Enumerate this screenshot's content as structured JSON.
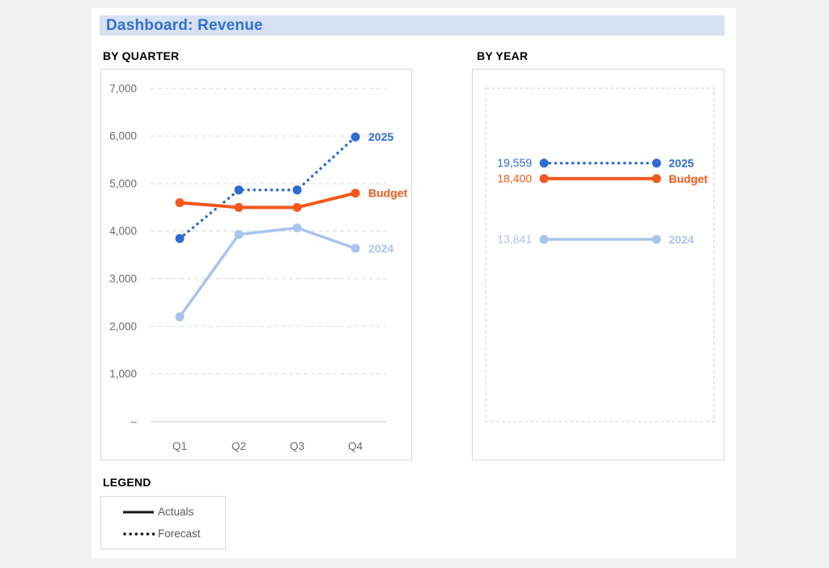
{
  "header": {
    "title": "Dashboard: Revenue"
  },
  "sections": {
    "quarter_heading": "BY QUARTER",
    "year_heading": "BY YEAR",
    "legend_heading": "LEGEND"
  },
  "legend": {
    "items": [
      {
        "label": "Actuals",
        "style": "solid"
      },
      {
        "label": "Forecast",
        "style": "dotted"
      }
    ]
  },
  "colors": {
    "accent_blue": "#2e6bd2",
    "accent_orange": "#f4581c",
    "accent_light_blue": "#a9c4ec",
    "title_bar_bg": "#d7e1f4",
    "title_text": "#3070d2",
    "axis_text": "#6b6b6b",
    "gridline": "#d9d9d9",
    "legend_line": "#1a1a1a"
  },
  "chart_data": [
    {
      "type": "line",
      "title": "BY QUARTER",
      "categories": [
        "Q1",
        "Q2",
        "Q3",
        "Q4"
      ],
      "series": [
        {
          "name": "2025",
          "values": [
            3846,
            4866,
            4866,
            5981
          ],
          "color": "#2e6bd2",
          "line_style": "dotted"
        },
        {
          "name": "Budget",
          "values": [
            4600,
            4500,
            4500,
            4800
          ],
          "color": "#f4581c",
          "line_style": "solid"
        },
        {
          "name": "2024",
          "values": [
            2200,
            3931,
            4070,
            3640
          ],
          "color": "#a9c4ec",
          "line_style": "solid"
        }
      ],
      "ylim": [
        0,
        7000
      ],
      "yticks": [
        {
          "value": 7000,
          "label": "7,000"
        },
        {
          "value": 6000,
          "label": "6,000"
        },
        {
          "value": 5000,
          "label": "5,000"
        },
        {
          "value": 4000,
          "label": "4,000"
        },
        {
          "value": 3000,
          "label": "3,000"
        },
        {
          "value": 2000,
          "label": "2,000"
        },
        {
          "value": 1000,
          "label": "1,000"
        },
        {
          "value": 0,
          "label": "–"
        }
      ],
      "grid": true,
      "legend_position": "labels-at-line-end"
    },
    {
      "type": "line",
      "title": "BY YEAR",
      "series": [
        {
          "name": "2025",
          "value": 19559,
          "value_label": "19,559",
          "color": "#2e6bd2",
          "line_style": "dotted"
        },
        {
          "name": "Budget",
          "value": 18400,
          "value_label": "18,400",
          "color": "#f4581c",
          "line_style": "solid"
        },
        {
          "name": "2024",
          "value": 13841,
          "value_label": "13,841",
          "color": "#a9c4ec",
          "line_style": "solid"
        }
      ],
      "ylim": [
        0,
        25000
      ],
      "grid": false,
      "legend_position": "labels-at-line-end"
    }
  ]
}
